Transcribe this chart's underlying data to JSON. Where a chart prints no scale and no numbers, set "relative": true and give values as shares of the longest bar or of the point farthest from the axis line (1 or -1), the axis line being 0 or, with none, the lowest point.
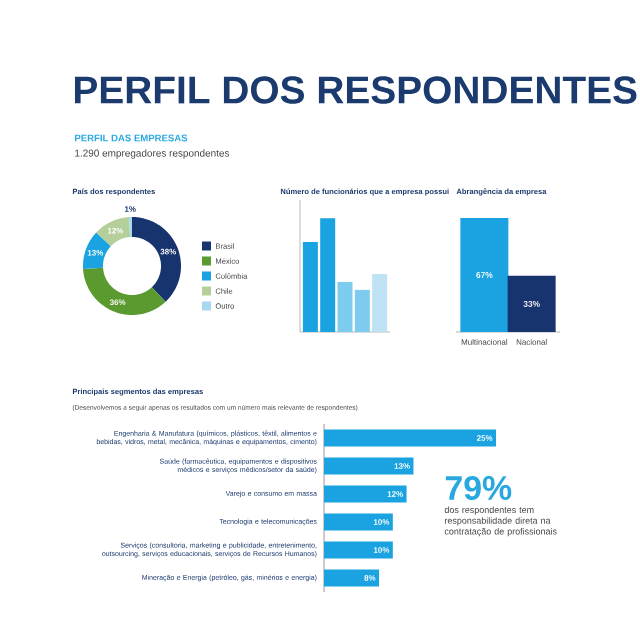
{
  "chart_data": [
    {
      "type": "other",
      "title": "PERFIL DOS RESPONDENTES",
      "subtitle": "PERFIL DAS EMPRESAS",
      "annotations": [
        "1.290 empregadores respondentes"
      ]
    },
    {
      "type": "donut",
      "title": "País dos respondentes",
      "categories": [
        "Brasil",
        "México",
        "Colômbia",
        "Chile",
        "Outro"
      ],
      "values": [
        38,
        36,
        13,
        12,
        1
      ],
      "value_labels": [
        "38%",
        "36%",
        "13%",
        "12%",
        "1%"
      ],
      "colors": [
        "#17346e",
        "#5a9a2f",
        "#1aa3e0",
        "#b4cf9a",
        "#a8d8f0"
      ],
      "legend": "right"
    },
    {
      "type": "bar",
      "title": "Número de funcionários que a empresa possui",
      "categories": [
        null,
        null,
        null,
        null,
        null
      ],
      "values": [
        0.79,
        1,
        0.44,
        0.37,
        0.51
      ],
      "colors": [
        "#1aa3e0",
        "#1aa3e0",
        "#7dcbee",
        "#7dcbee",
        "#bfe3f5"
      ],
      "relative": true
    },
    {
      "type": "bar",
      "title": "Abrangência da empresa",
      "categories": [
        "Multinacional",
        "Nacional"
      ],
      "values": [
        67,
        33
      ],
      "value_labels": [
        "67%",
        "33%"
      ],
      "colors": [
        "#1aa3e0",
        "#17346e"
      ]
    },
    {
      "type": "bar",
      "orientation": "horizontal",
      "title": "Principais segmentos das empresas",
      "subtitle": "(Desenvolvemos a seguir apenas os resultados com um número mais relevante de respondentes)",
      "categories": [
        "Engenharia & Manufatura (químicos, plásticos, têxtil, alimentos e bebidas, vidros, metal, mecânica, máquinas e equipamentos, cimento)",
        "Saúde (farmacêutica, equipamentos e dispositivos médicos e serviços médicos/setor da saúde)",
        "Varejo e consumo em massa",
        "Tecnologia e telecomunicações",
        "Serviços (consultoria, marketing e publicidade, entretenimento, outsourcing, serviços educacionais, serviços de Recursos Humanos)",
        "Mineração e Energia (petróleo, gás, minérios e energia)"
      ],
      "values": [
        25,
        13,
        12,
        10,
        10,
        8
      ],
      "value_labels": [
        "25%",
        "13%",
        "12%",
        "10%",
        "10%",
        "8%"
      ],
      "color": "#1aa3e0",
      "annotations": [
        "79%",
        "dos respondentes tem responsabilidade direta na contratação de profissionais"
      ]
    }
  ]
}
